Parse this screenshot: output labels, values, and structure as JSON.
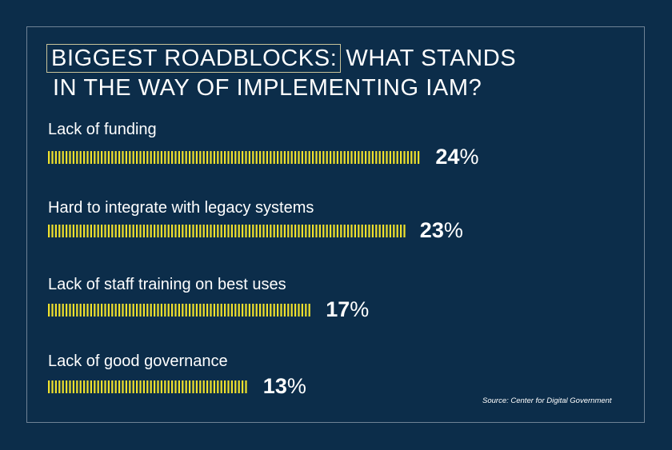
{
  "title": {
    "highlight": "BIGGEST ROADBLOCKS:",
    "rest_line1": "WHAT STANDS",
    "line2": "IN THE WAY OF IMPLEMENTING IAM?"
  },
  "source": "Source: Center for Digital Government",
  "colors": {
    "background": "#0c2d4a",
    "bar": "#f0e12d",
    "text": "#ffffff",
    "title_box": "#c8c39a"
  },
  "chart_data": {
    "type": "bar",
    "orientation": "horizontal",
    "bar_style": "tick-marks",
    "categories": [
      "Lack of funding",
      "Hard to integrate with legacy systems",
      "Lack of staff training on best uses",
      "Lack of good governance"
    ],
    "values": [
      24,
      23,
      17,
      13
    ],
    "value_labels": [
      "24%",
      "23%",
      "17%",
      "13%"
    ],
    "unit": "%",
    "title": "BIGGEST ROADBLOCKS: WHAT STANDS IN THE WAY OF IMPLEMENTING IAM?",
    "xlabel": "",
    "ylabel": ""
  }
}
